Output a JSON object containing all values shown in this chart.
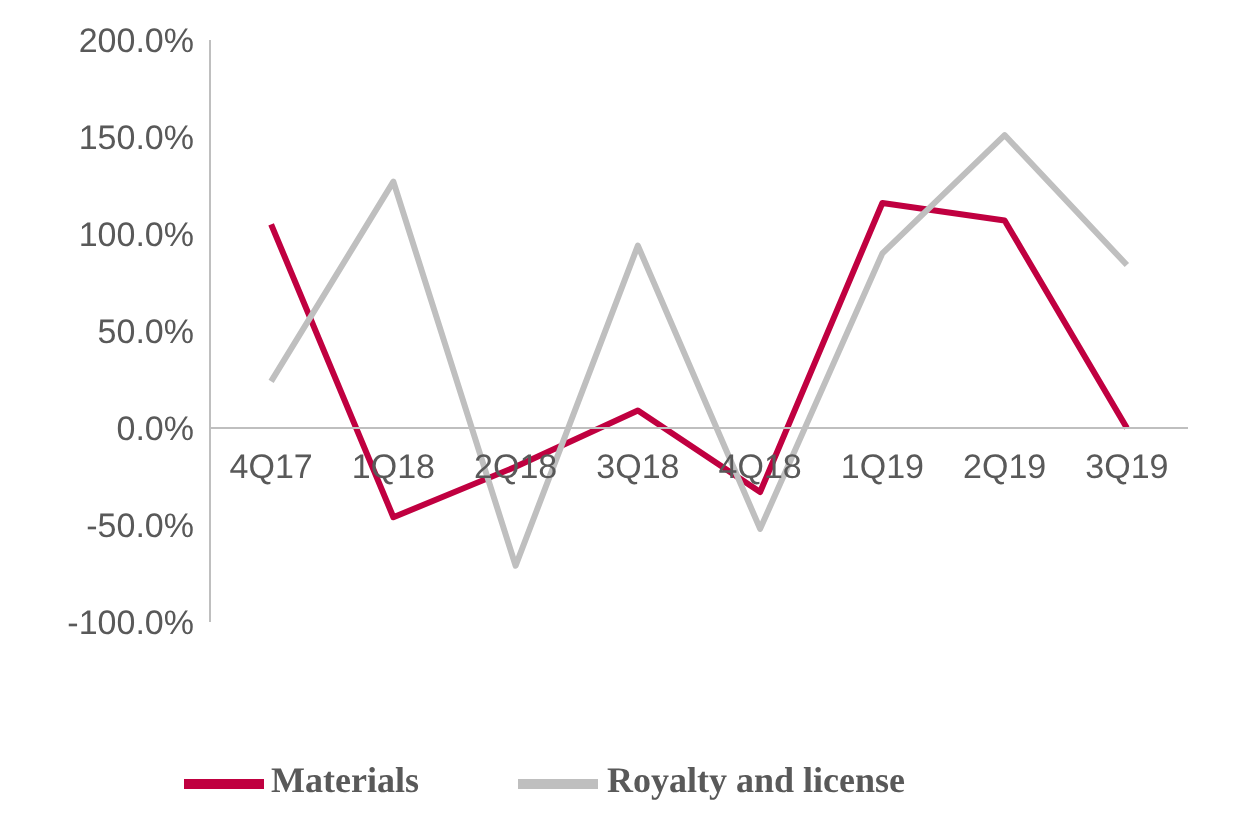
{
  "chart_data": {
    "type": "line",
    "categories": [
      "4Q17",
      "1Q18",
      "2Q18",
      "3Q18",
      "4Q18",
      "1Q19",
      "2Q19",
      "3Q19"
    ],
    "series": [
      {
        "name": "Materials",
        "color": "#c00040",
        "values": [
          105,
          -46,
          -20,
          9,
          -33,
          116,
          107,
          0
        ]
      },
      {
        "name": "Royalty and license",
        "color": "#bfbfbf",
        "values": [
          24,
          127,
          -71,
          94,
          -52,
          90,
          151,
          84
        ]
      }
    ],
    "ylim": [
      -100,
      200
    ],
    "yticks": [
      {
        "value": -100,
        "label": "-100.0%"
      },
      {
        "value": -50,
        "label": "-50.0%"
      },
      {
        "value": 0,
        "label": "0.0%"
      },
      {
        "value": 50,
        "label": "50.0%"
      },
      {
        "value": 100,
        "label": "100.0%"
      },
      {
        "value": 150,
        "label": "150.0%"
      },
      {
        "value": 200,
        "label": "200.0%"
      }
    ],
    "grid": false,
    "legend": "bottom",
    "marker": "none",
    "line_style": "solid"
  }
}
